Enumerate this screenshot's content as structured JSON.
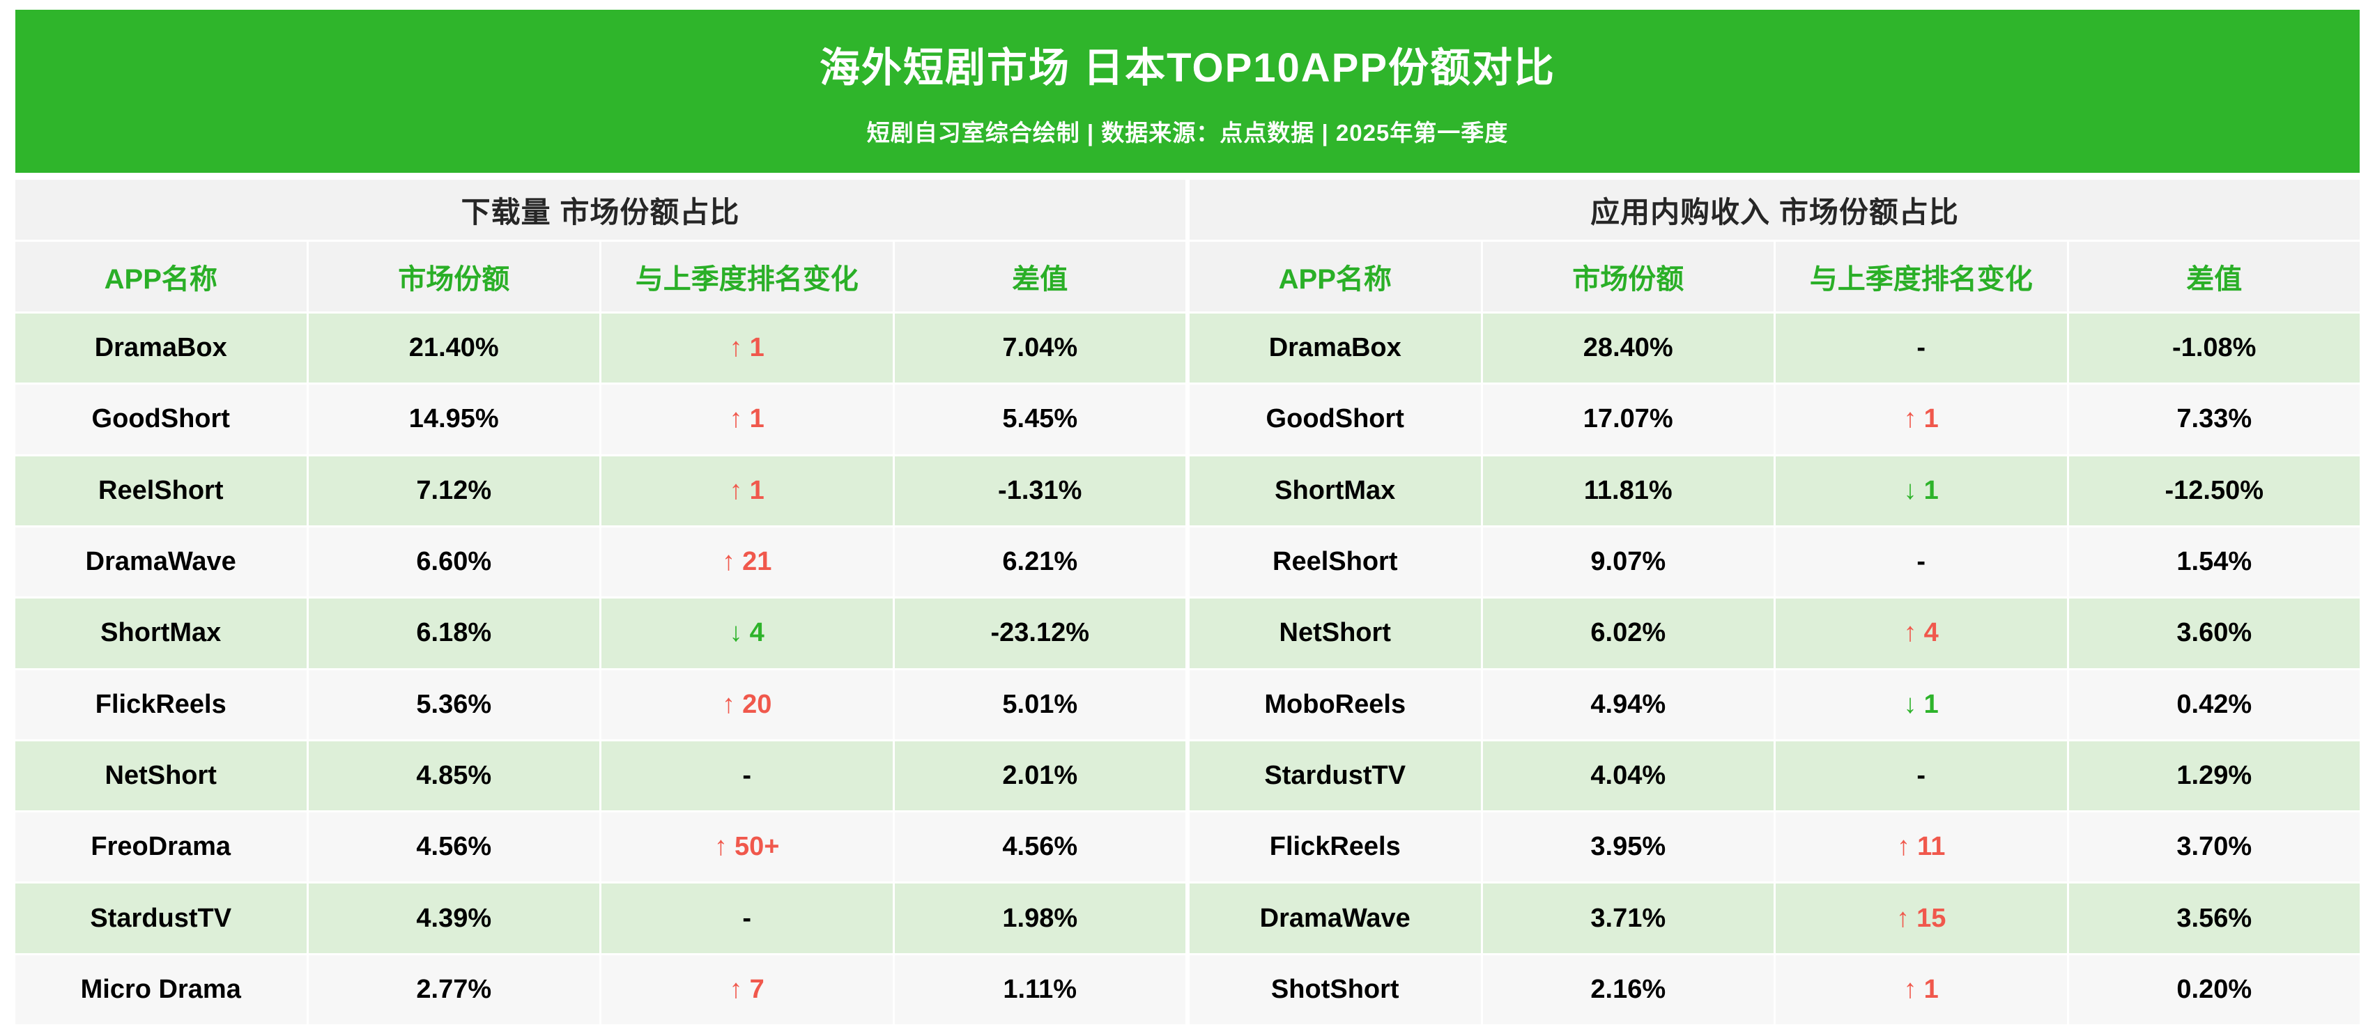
{
  "banner": {
    "title": "海外短剧市场 日本TOP10APP份额对比",
    "subtitle": "短剧自习室综合绘制 | 数据来源：点点数据 | 2025年第一季度"
  },
  "colors": {
    "banner_green": "#2fb52b",
    "header_bg_gray": "#f2f2f2",
    "header_text_green": "#2aaf27",
    "row_light_green": "#ddefd8",
    "row_light_gray": "#f7f7f7",
    "rank_up_red": "#f0584c",
    "rank_down_green": "#2db32a"
  },
  "chart_data": [
    {
      "type": "table",
      "title": "下载量 市场份额占比",
      "columns": [
        "APP名称",
        "市场份额",
        "与上季度排名变化",
        "差值"
      ],
      "rows": [
        {
          "app": "DramaBox",
          "share": "21.40%",
          "rank_change": "1",
          "rank_dir": "up",
          "diff": "7.04%"
        },
        {
          "app": "GoodShort",
          "share": "14.95%",
          "rank_change": "1",
          "rank_dir": "up",
          "diff": "5.45%"
        },
        {
          "app": "ReelShort",
          "share": "7.12%",
          "rank_change": "1",
          "rank_dir": "up",
          "diff": "-1.31%"
        },
        {
          "app": "DramaWave",
          "share": "6.60%",
          "rank_change": "21",
          "rank_dir": "up",
          "diff": "6.21%"
        },
        {
          "app": "ShortMax",
          "share": "6.18%",
          "rank_change": "4",
          "rank_dir": "down",
          "diff": "-23.12%"
        },
        {
          "app": "FlickReels",
          "share": "5.36%",
          "rank_change": "20",
          "rank_dir": "up",
          "diff": "5.01%"
        },
        {
          "app": "NetShort",
          "share": "4.85%",
          "rank_change": "",
          "rank_dir": "none",
          "diff": "2.01%"
        },
        {
          "app": "FreoDrama",
          "share": "4.56%",
          "rank_change": "50+",
          "rank_dir": "up",
          "diff": "4.56%"
        },
        {
          "app": "StardustTV",
          "share": "4.39%",
          "rank_change": "",
          "rank_dir": "none",
          "diff": "1.98%"
        },
        {
          "app": "Micro Drama",
          "share": "2.77%",
          "rank_change": "7",
          "rank_dir": "up",
          "diff": "1.11%"
        }
      ]
    },
    {
      "type": "table",
      "title": "应用内购收入 市场份额占比",
      "columns": [
        "APP名称",
        "市场份额",
        "与上季度排名变化",
        "差值"
      ],
      "rows": [
        {
          "app": "DramaBox",
          "share": "28.40%",
          "rank_change": "",
          "rank_dir": "none",
          "diff": "-1.08%"
        },
        {
          "app": "GoodShort",
          "share": "17.07%",
          "rank_change": "1",
          "rank_dir": "up",
          "diff": "7.33%"
        },
        {
          "app": "ShortMax",
          "share": "11.81%",
          "rank_change": "1",
          "rank_dir": "down",
          "diff": "-12.50%"
        },
        {
          "app": "ReelShort",
          "share": "9.07%",
          "rank_change": "",
          "rank_dir": "none",
          "diff": "1.54%"
        },
        {
          "app": "NetShort",
          "share": "6.02%",
          "rank_change": "4",
          "rank_dir": "up",
          "diff": "3.60%"
        },
        {
          "app": "MoboReels",
          "share": "4.94%",
          "rank_change": "1",
          "rank_dir": "down",
          "diff": "0.42%"
        },
        {
          "app": "StardustTV",
          "share": "4.04%",
          "rank_change": "",
          "rank_dir": "none",
          "diff": "1.29%"
        },
        {
          "app": "FlickReels",
          "share": "3.95%",
          "rank_change": "11",
          "rank_dir": "up",
          "diff": "3.70%"
        },
        {
          "app": "DramaWave",
          "share": "3.71%",
          "rank_change": "15",
          "rank_dir": "up",
          "diff": "3.56%"
        },
        {
          "app": "ShotShort",
          "share": "2.16%",
          "rank_change": "1",
          "rank_dir": "up",
          "diff": "0.20%"
        }
      ]
    }
  ]
}
